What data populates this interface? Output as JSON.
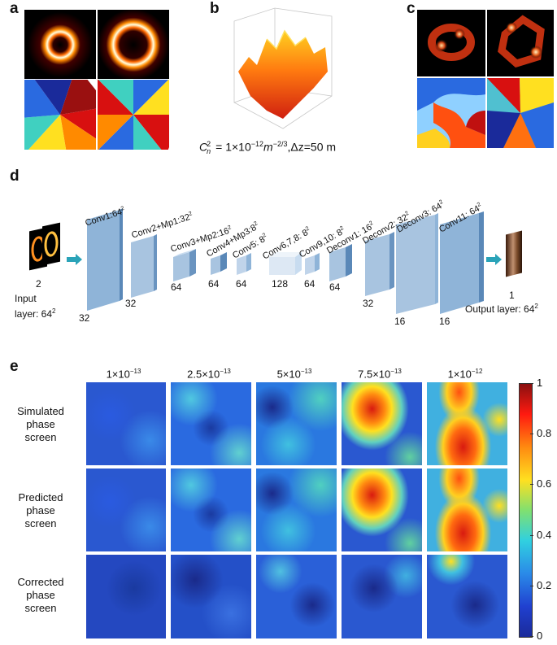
{
  "panels": {
    "a": "a",
    "b": "b",
    "c": "c",
    "d": "d",
    "e": "e"
  },
  "panel_b": {
    "caption_prefix": "C",
    "caption_sub": "n",
    "caption_sup": "2",
    "caption_eq": "= 1×10",
    "caption_exp": "−12",
    "caption_m": "m",
    "caption_mexp": "−2/3",
    "caption_dz": ",Δz=50 m"
  },
  "panel_d": {
    "input_count": "2",
    "input_label_line1": "Input",
    "input_label_line2": "layer: 64",
    "input_label_sup": "2",
    "output_count": "1",
    "output_label": "Output layer: 64",
    "output_label_sup": "2",
    "layers": [
      {
        "name": "Conv1:64",
        "sup": "2",
        "channels": "32"
      },
      {
        "name": "Conv2+Mp1:32",
        "sup": "2",
        "channels": "32"
      },
      {
        "name": "Conv3+Mp2:16",
        "sup": "2",
        "channels": "64"
      },
      {
        "name": "Conv4+Mp3:8",
        "sup": "2",
        "channels": "64"
      },
      {
        "name": "Conv5: 8",
        "sup": "2",
        "channels": "64"
      },
      {
        "name": "Conv6,7,8: 8",
        "sup": "2",
        "channels": "128"
      },
      {
        "name": "Conv9,10: 8",
        "sup": "2",
        "channels": "64"
      },
      {
        "name": "Deconv1: 16",
        "sup": "2",
        "channels": "64"
      },
      {
        "name": "Deconv2: 32",
        "sup": "2",
        "channels": "32"
      },
      {
        "name": "Deconv3: 64",
        "sup": "2",
        "channels": "16"
      },
      {
        "name": "Conv11: 64",
        "sup": "2",
        "channels": "16"
      }
    ]
  },
  "panel_e": {
    "columns": [
      {
        "mant": "1×10",
        "exp": "−13"
      },
      {
        "mant": "2.5×10",
        "exp": "−13"
      },
      {
        "mant": "5×10",
        "exp": "−13"
      },
      {
        "mant": "7.5×10",
        "exp": "−13"
      },
      {
        "mant": "1×10",
        "exp": "−12"
      }
    ],
    "rows": [
      {
        "line1": "Simulated",
        "line2": "phase",
        "line3": "screen"
      },
      {
        "line1": "Predicted",
        "line2": "phase",
        "line3": "screen"
      },
      {
        "line1": "Corrected",
        "line2": "phase",
        "line3": "screen"
      }
    ],
    "colorbar_ticks": [
      "1",
      "0.8",
      "0.6",
      "0.4",
      "0.2",
      "0"
    ],
    "colorbar_levels": [
      1,
      0.8,
      0.6,
      0.4,
      0.2,
      0
    ]
  },
  "colors": {
    "arrow": "#2aa3b8",
    "layer_face": "#8fb4d8",
    "layer_side": "#5a88b8",
    "layer_top": "#b8d0e8",
    "jet_low": "#1a2a9a",
    "jet_high": "#8a1010"
  }
}
